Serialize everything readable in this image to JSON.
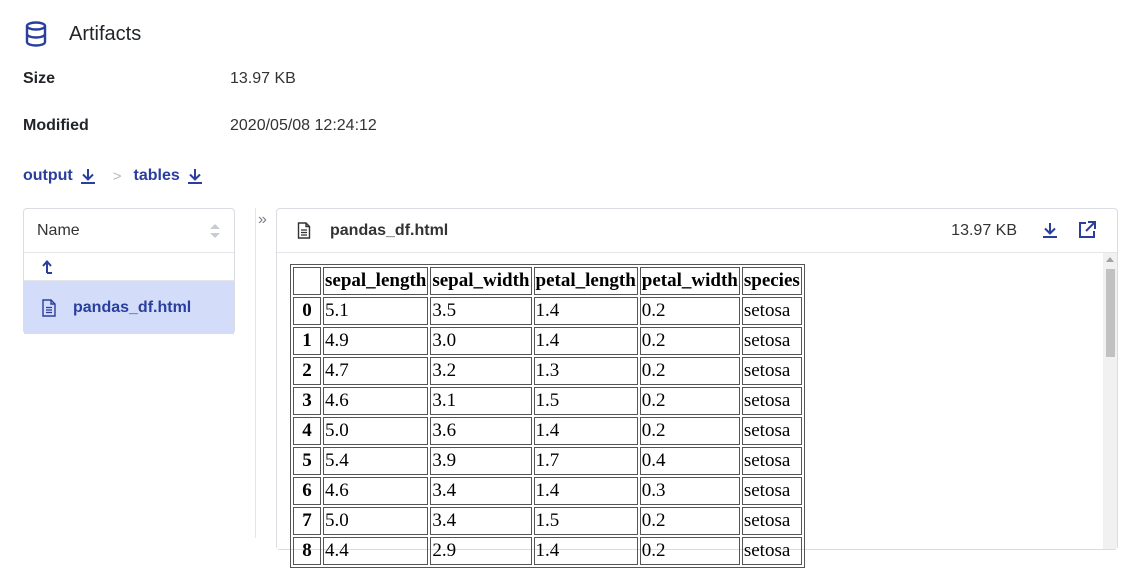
{
  "header": {
    "title": "Artifacts",
    "icon": "database-icon"
  },
  "meta": [
    {
      "key": "Size",
      "value": "13.97 KB"
    },
    {
      "key": "Modified",
      "value": "2020/05/08 12:24:12"
    }
  ],
  "breadcrumbs": [
    {
      "label": "output",
      "icon": "download-icon"
    },
    {
      "label": "tables",
      "icon": "download-icon"
    }
  ],
  "breadcrumb_separator": ">",
  "files": {
    "column_header": "Name",
    "parent_dir_label": "↑",
    "items": [
      {
        "name": "pandas_df.html",
        "icon": "file-icon",
        "selected": true
      }
    ]
  },
  "viewer": {
    "file_name": "pandas_df.html",
    "file_size": "13.97 KB"
  },
  "table": {
    "columns": [
      "",
      "sepal_length",
      "sepal_width",
      "petal_length",
      "petal_width",
      "species"
    ],
    "rows": [
      [
        "0",
        "5.1",
        "3.5",
        "1.4",
        "0.2",
        "setosa"
      ],
      [
        "1",
        "4.9",
        "3.0",
        "1.4",
        "0.2",
        "setosa"
      ],
      [
        "2",
        "4.7",
        "3.2",
        "1.3",
        "0.2",
        "setosa"
      ],
      [
        "3",
        "4.6",
        "3.1",
        "1.5",
        "0.2",
        "setosa"
      ],
      [
        "4",
        "5.0",
        "3.6",
        "1.4",
        "0.2",
        "setosa"
      ],
      [
        "5",
        "5.4",
        "3.9",
        "1.7",
        "0.4",
        "setosa"
      ],
      [
        "6",
        "4.6",
        "3.4",
        "1.4",
        "0.3",
        "setosa"
      ],
      [
        "7",
        "5.0",
        "3.4",
        "1.5",
        "0.2",
        "setosa"
      ],
      [
        "8",
        "4.4",
        "2.9",
        "1.4",
        "0.2",
        "setosa"
      ]
    ]
  },
  "colors": {
    "accent": "#2a3e9e",
    "selected_bg": "#d3ddfa"
  }
}
